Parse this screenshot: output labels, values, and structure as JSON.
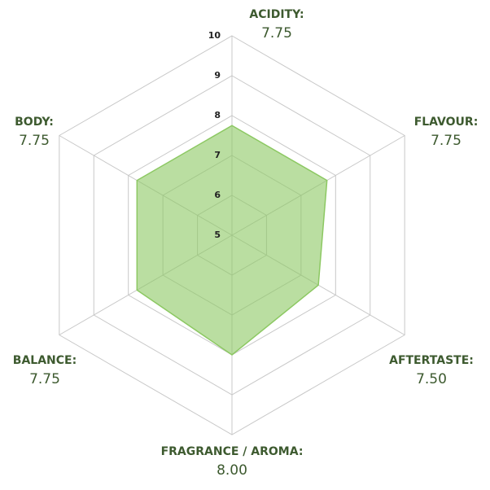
{
  "chart_data": {
    "type": "radar",
    "categories": [
      "ACIDITY:",
      "FLAVOUR:",
      "AFTERTASTE:",
      "FRAGRANCE / AROMA:",
      "BALANCE:",
      "BODY:"
    ],
    "values": [
      7.75,
      7.75,
      7.5,
      8.0,
      7.75,
      7.75
    ],
    "value_labels": [
      "7.75",
      "7.75",
      "7.50",
      "8.00",
      "7.75",
      "7.75"
    ],
    "rlim": [
      5,
      10
    ],
    "rticks": [
      5,
      6,
      7,
      8,
      9,
      10
    ],
    "color": "#8cc862",
    "grid": true
  }
}
